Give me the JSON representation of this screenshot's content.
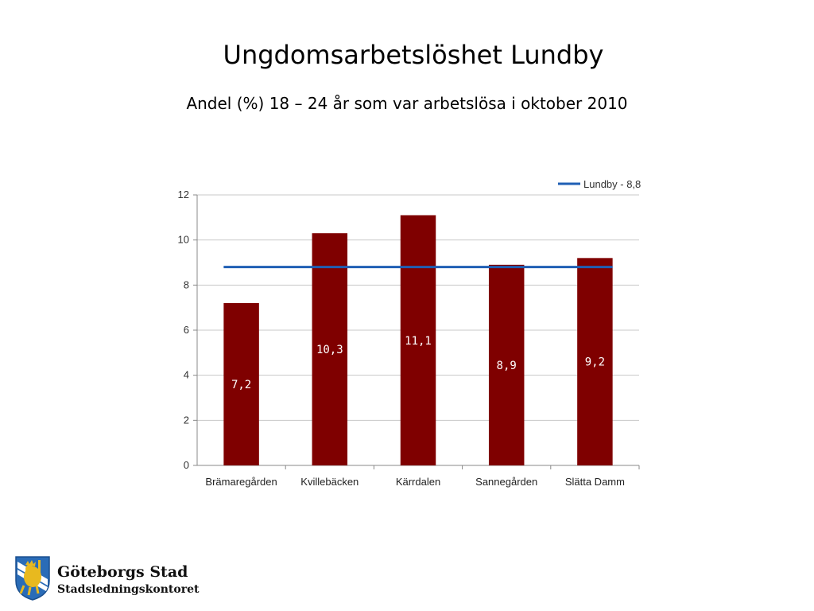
{
  "slide": {
    "title": "Ungdomsarbetslöshet Lundby",
    "subtitle": "Andel (%) 18 – 24 år som var arbetslösa i oktober 2010"
  },
  "chart_data": {
    "type": "bar",
    "categories": [
      "Brämaregården",
      "Kvillebäcken",
      "Kärrdalen",
      "Sannegården",
      "Slätta Damm"
    ],
    "series": [
      {
        "values": [
          7.2,
          10.3,
          11.1,
          8.9,
          9.2
        ],
        "labels": [
          "7,2",
          "10,3",
          "11,1",
          "8,9",
          "9,2"
        ],
        "color": "#7f0000"
      }
    ],
    "reference_line": {
      "name": "Lundby - 8,8",
      "value": 8.8,
      "color": "#1f5fb4"
    },
    "ylim": [
      0,
      12
    ],
    "yticks": [
      0,
      2,
      4,
      6,
      8,
      10,
      12
    ],
    "grid": true,
    "legend": "top-right",
    "label_color": "#ffffff"
  },
  "footer": {
    "org_name": "Göteborgs Stad",
    "dept_name": "Stadsledningskontoret",
    "logo_icon": "gothenburg-lion-crest-icon"
  }
}
